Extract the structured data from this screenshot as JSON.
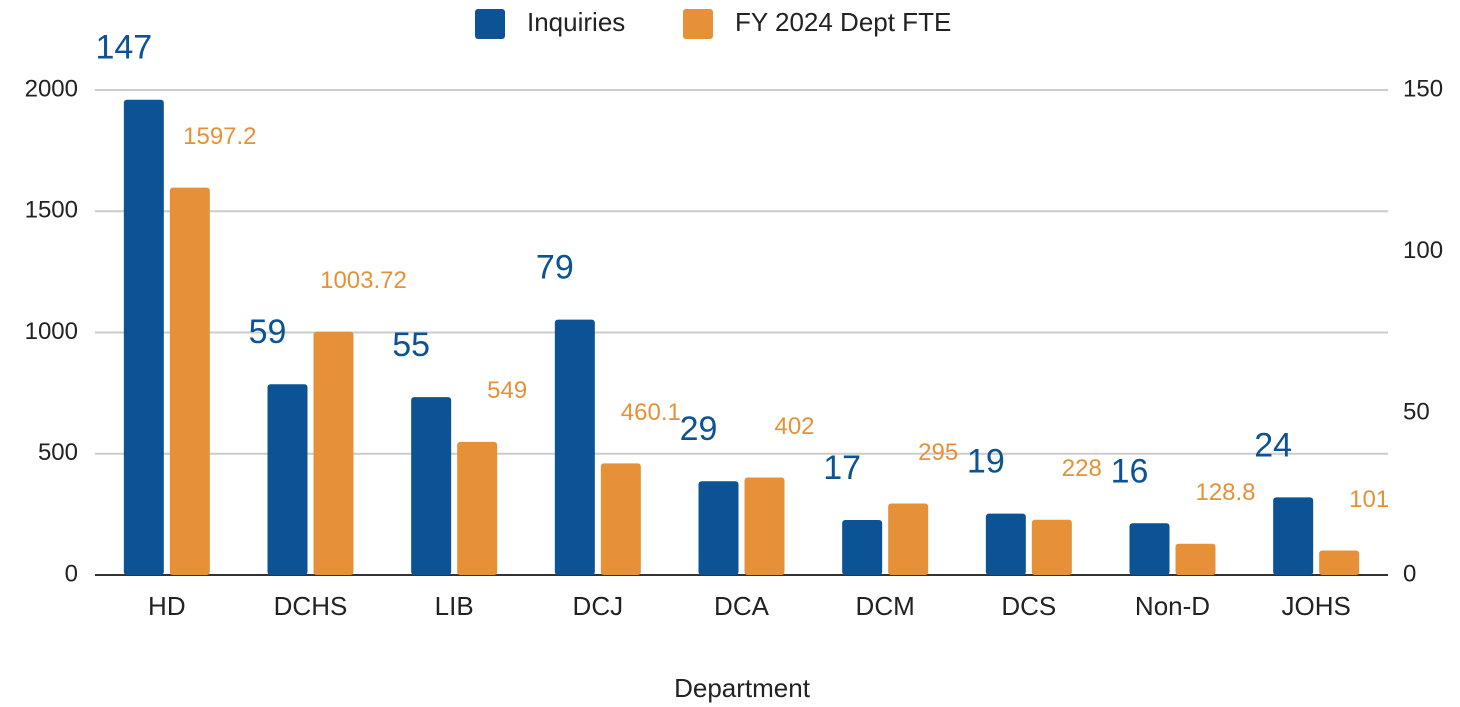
{
  "chart_data": {
    "type": "bar",
    "categories": [
      "HD",
      "DCHS",
      "LIB",
      "DCJ",
      "DCA",
      "DCM",
      "DCS",
      "Non-D",
      "JOHS"
    ],
    "series": [
      {
        "name": "Inquiries",
        "color": "#0b5394",
        "axis": "y2",
        "values": [
          147,
          59,
          55,
          79,
          29,
          17,
          19,
          16,
          24
        ]
      },
      {
        "name": "FY 2024 Dept FTE",
        "color": "#e69138",
        "values": [
          1597.2,
          1003.72,
          549,
          460.1,
          402,
          295,
          228,
          128.8,
          101
        ]
      }
    ],
    "ylim": [
      0,
      2000
    ],
    "yticks": [
      0,
      500,
      1000,
      1500,
      2000
    ],
    "y2lim": [
      0,
      150
    ],
    "y2ticks": [
      0,
      50,
      100,
      150
    ],
    "xlabel": "Department",
    "grid": true,
    "legend": "top"
  }
}
